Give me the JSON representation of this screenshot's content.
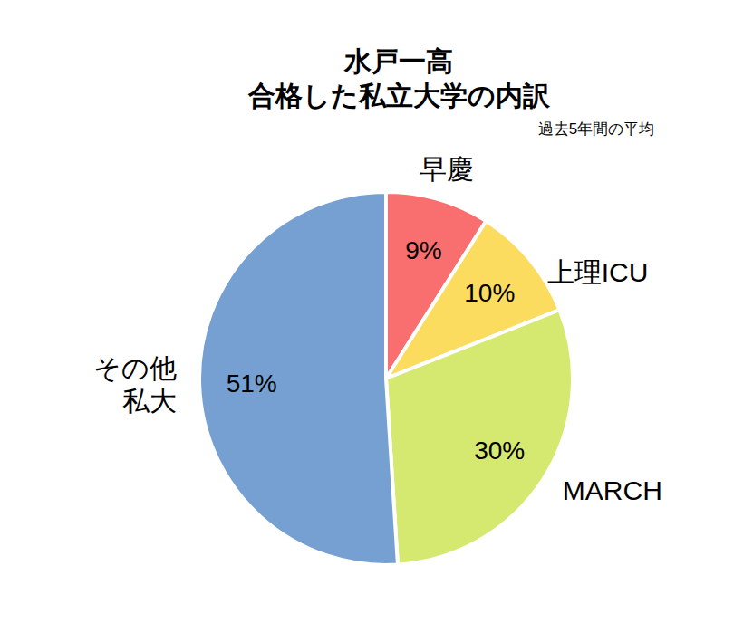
{
  "chart_data": {
    "type": "pie",
    "title": "水戸一高\n合格した私立大学の内訳",
    "subtitle": "過去5年間の平均",
    "categories": [
      "早慶",
      "上理ICU",
      "MARCH",
      "その他\n私大"
    ],
    "values": [
      9,
      10,
      30,
      51
    ],
    "value_labels": [
      "9%",
      "10%",
      "30%",
      "51%"
    ],
    "colors": [
      "#f96e6e",
      "#fbdc5f",
      "#d5e86f",
      "#75a0d1"
    ],
    "data_labels": true
  }
}
